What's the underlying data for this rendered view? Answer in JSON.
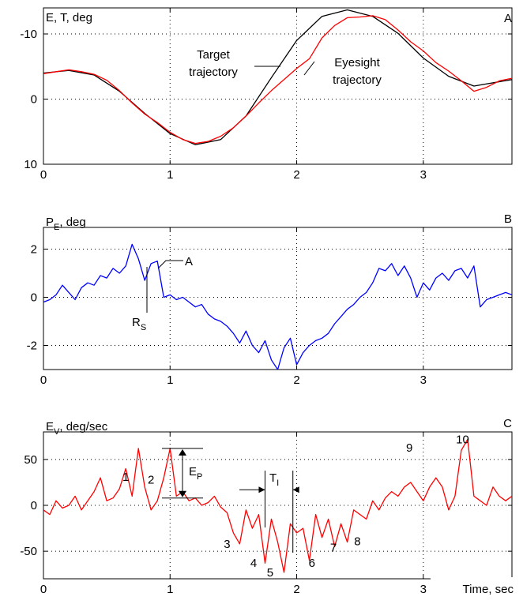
{
  "chart_data": [
    {
      "type": "line",
      "panel_letter": "A",
      "ylabel": "E, T, deg",
      "xlim": [
        0,
        3.7
      ],
      "ylim": [
        10,
        -14
      ],
      "yticks": [
        -10,
        0,
        10
      ],
      "xticks": [
        0,
        1,
        2,
        3
      ],
      "grid": true,
      "annotations": [
        {
          "text_lines": [
            "Target",
            "trajectory"
          ],
          "target_series": "Target trajectory",
          "target_x": 1.85
        },
        {
          "text_lines": [
            "Eyesight",
            "trajectory"
          ],
          "target_series": "Eyesight trajectory",
          "target_x": 2.07
        }
      ],
      "series": [
        {
          "name": "Target trajectory",
          "color": "#000000",
          "x": [
            0,
            0.2,
            0.4,
            0.6,
            0.8,
            1.0,
            1.2,
            1.4,
            1.6,
            1.8,
            2.0,
            2.2,
            2.4,
            2.6,
            2.8,
            3.0,
            3.2,
            3.4,
            3.7
          ],
          "y": [
            -4.0,
            -4.4,
            -3.7,
            -1.2,
            2.2,
            5.3,
            7.0,
            6.2,
            2.6,
            -3.3,
            -9.0,
            -12.7,
            -13.7,
            -12.7,
            -10.1,
            -6.3,
            -3.5,
            -2.0,
            -3.0
          ]
        },
        {
          "name": "Eyesight trajectory",
          "color": "#ff0000",
          "x": [
            0,
            0.1,
            0.2,
            0.3,
            0.4,
            0.5,
            0.6,
            0.7,
            0.8,
            0.9,
            1.0,
            1.1,
            1.2,
            1.3,
            1.4,
            1.5,
            1.6,
            1.7,
            1.8,
            1.9,
            2.0,
            2.1,
            2.2,
            2.3,
            2.4,
            2.5,
            2.6,
            2.7,
            2.8,
            2.9,
            3.0,
            3.1,
            3.2,
            3.3,
            3.4,
            3.5,
            3.6,
            3.7
          ],
          "y": [
            -3.9,
            -4.2,
            -4.5,
            -4.2,
            -3.8,
            -2.9,
            -1.3,
            0.6,
            2.3,
            3.6,
            5.1,
            6.2,
            6.8,
            6.5,
            5.7,
            4.4,
            2.6,
            0.6,
            -1.3,
            -3.0,
            -4.7,
            -6.2,
            -9.4,
            -11.3,
            -12.5,
            -12.6,
            -12.8,
            -12.2,
            -10.6,
            -8.8,
            -7.4,
            -5.6,
            -4.3,
            -2.8,
            -1.2,
            -1.8,
            -2.8,
            -3.2
          ]
        }
      ]
    },
    {
      "type": "line",
      "panel_letter": "B",
      "ylabel": "P",
      "ylabel_sub": "E",
      "ylabel_suffix": ", deg",
      "xlim": [
        0,
        3.7
      ],
      "ylim": [
        -3,
        2.9
      ],
      "yticks": [
        2,
        0,
        -2
      ],
      "xticks": [
        0,
        1,
        2,
        3
      ],
      "grid": true,
      "annotations": [
        {
          "text": "A",
          "x": 0.85,
          "y": 1.35
        },
        {
          "text": "R",
          "sub": "S",
          "x": 0.82,
          "y": 0.8
        }
      ],
      "series": [
        {
          "name": "",
          "color": "#0000ff",
          "x": [
            0,
            0.05,
            0.1,
            0.15,
            0.2,
            0.25,
            0.3,
            0.35,
            0.4,
            0.45,
            0.5,
            0.55,
            0.6,
            0.65,
            0.7,
            0.75,
            0.8,
            0.85,
            0.9,
            0.95,
            1.0,
            1.05,
            1.1,
            1.15,
            1.2,
            1.25,
            1.3,
            1.35,
            1.4,
            1.45,
            1.5,
            1.55,
            1.6,
            1.65,
            1.7,
            1.75,
            1.8,
            1.85,
            1.9,
            1.95,
            2.0,
            2.05,
            2.1,
            2.15,
            2.2,
            2.25,
            2.3,
            2.35,
            2.4,
            2.45,
            2.5,
            2.55,
            2.6,
            2.65,
            2.7,
            2.75,
            2.8,
            2.85,
            2.9,
            2.95,
            3.0,
            3.05,
            3.1,
            3.15,
            3.2,
            3.25,
            3.3,
            3.35,
            3.4,
            3.45,
            3.5,
            3.55,
            3.6,
            3.65,
            3.7
          ],
          "y": [
            -0.2,
            -0.1,
            0.1,
            0.5,
            0.2,
            -0.1,
            0.4,
            0.6,
            0.5,
            0.9,
            0.8,
            1.2,
            1.0,
            1.3,
            2.2,
            1.6,
            0.7,
            1.4,
            1.5,
            0.0,
            0.1,
            -0.1,
            0.0,
            -0.2,
            -0.4,
            -0.3,
            -0.7,
            -0.9,
            -1.0,
            -1.2,
            -1.5,
            -1.9,
            -1.4,
            -2.0,
            -2.3,
            -1.8,
            -2.6,
            -3.0,
            -2.1,
            -1.7,
            -2.8,
            -2.3,
            -2.0,
            -1.8,
            -1.7,
            -1.5,
            -1.1,
            -0.8,
            -0.5,
            -0.3,
            0.0,
            0.2,
            0.6,
            1.2,
            1.1,
            1.4,
            0.9,
            1.3,
            0.8,
            0.0,
            0.6,
            0.3,
            0.8,
            1.0,
            0.7,
            1.1,
            1.2,
            0.8,
            1.3,
            -0.4,
            -0.1,
            0.0,
            0.1,
            0.2,
            0.1
          ]
        }
      ]
    },
    {
      "type": "line",
      "panel_letter": "C",
      "ylabel": "E",
      "ylabel_sub": "V",
      "ylabel_suffix": ", deg/sec",
      "xlabel": "Time, sec",
      "xlim": [
        0,
        3.7
      ],
      "ylim": [
        -80,
        80
      ],
      "yticks": [
        50,
        0,
        -50
      ],
      "xticks": [
        0,
        1,
        2,
        3
      ],
      "grid": true,
      "annotations": [
        {
          "text": "E",
          "sub": "P",
          "type": "vertical-bracket",
          "x": 1.15,
          "y_top": 62,
          "y_bottom": 8
        },
        {
          "text": "T",
          "sub": "I",
          "type": "horizontal-bracket",
          "x_start": 1.75,
          "x_end": 1.97,
          "y": 17
        }
      ],
      "peak_labels": [
        {
          "text": "1",
          "x": 0.65,
          "y": 31
        },
        {
          "text": "2",
          "x": 0.85,
          "y": 28
        },
        {
          "text": "3",
          "x": 1.45,
          "y": -42
        },
        {
          "text": "4",
          "x": 1.66,
          "y": -63
        },
        {
          "text": "5",
          "x": 1.79,
          "y": -73
        },
        {
          "text": "6",
          "x": 2.12,
          "y": -63
        },
        {
          "text": "7",
          "x": 2.29,
          "y": -46
        },
        {
          "text": "8",
          "x": 2.48,
          "y": -39
        },
        {
          "text": "9",
          "x": 2.89,
          "y": 63
        },
        {
          "text": "10",
          "x": 3.31,
          "y": 72
        }
      ],
      "series": [
        {
          "name": "",
          "color": "#ff0000",
          "x": [
            0,
            0.05,
            0.1,
            0.15,
            0.2,
            0.25,
            0.3,
            0.35,
            0.4,
            0.45,
            0.5,
            0.55,
            0.6,
            0.65,
            0.7,
            0.75,
            0.8,
            0.85,
            0.9,
            0.95,
            1.0,
            1.05,
            1.1,
            1.15,
            1.2,
            1.25,
            1.3,
            1.35,
            1.4,
            1.45,
            1.5,
            1.55,
            1.6,
            1.65,
            1.7,
            1.75,
            1.8,
            1.85,
            1.9,
            1.95,
            2.0,
            2.05,
            2.1,
            2.15,
            2.2,
            2.25,
            2.3,
            2.35,
            2.4,
            2.45,
            2.5,
            2.55,
            2.6,
            2.65,
            2.7,
            2.75,
            2.8,
            2.85,
            2.9,
            2.95,
            3.0,
            3.05,
            3.1,
            3.15,
            3.2,
            3.25,
            3.3,
            3.35,
            3.4,
            3.45,
            3.5,
            3.55,
            3.6,
            3.65,
            3.7
          ],
          "y": [
            -5,
            -10,
            5,
            -3,
            0,
            10,
            -5,
            5,
            15,
            30,
            5,
            8,
            18,
            40,
            10,
            62,
            20,
            -5,
            5,
            30,
            62,
            10,
            15,
            5,
            8,
            0,
            3,
            10,
            -2,
            -8,
            -30,
            -42,
            -5,
            -25,
            -10,
            -63,
            -15,
            -40,
            -73,
            -20,
            -30,
            -25,
            -60,
            -10,
            -35,
            -15,
            -45,
            -20,
            -40,
            -5,
            -10,
            -15,
            5,
            -5,
            8,
            15,
            10,
            20,
            25,
            15,
            5,
            20,
            30,
            20,
            -5,
            10,
            60,
            72,
            10,
            5,
            0,
            20,
            10,
            5,
            10
          ]
        }
      ]
    }
  ]
}
